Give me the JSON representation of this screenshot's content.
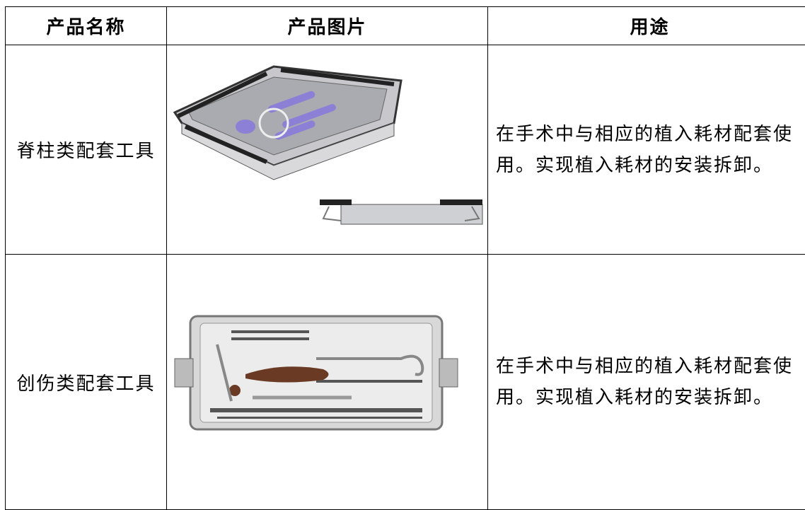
{
  "table": {
    "headers": [
      "产品名称",
      "产品图片",
      "用途"
    ],
    "rows": [
      {
        "name": "脊柱类配套工具",
        "usage": "在手术中与相应的植入耗材配套使用。实现植入耗材的安装拆卸。"
      },
      {
        "name": "创伤类配套工具",
        "usage": "在手术中与相应的植入耗材配套使用。实现植入耗材的安装拆卸。"
      }
    ]
  }
}
